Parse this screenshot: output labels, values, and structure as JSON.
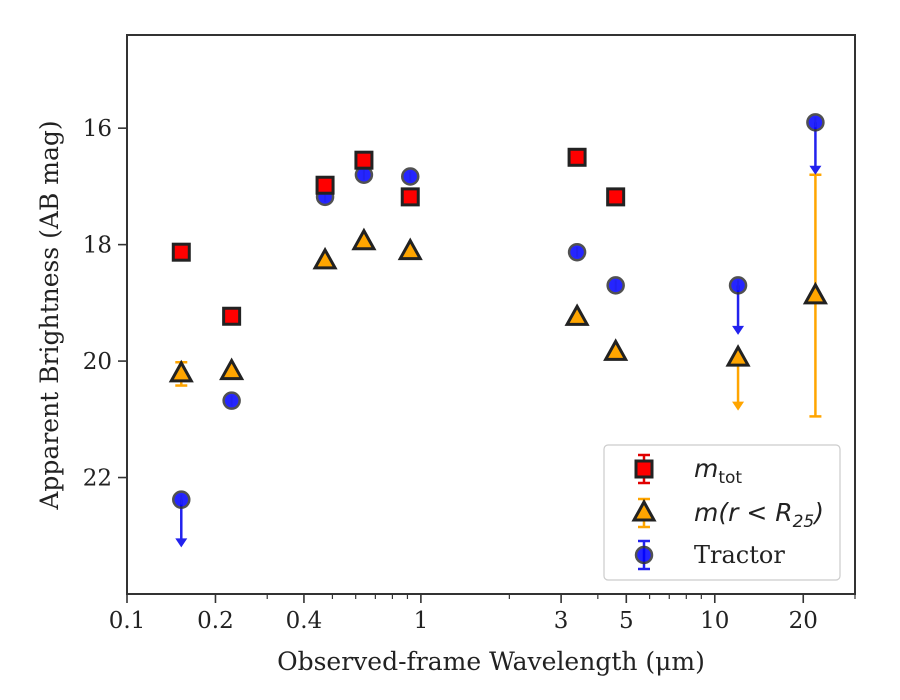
{
  "chart_data": {
    "type": "scatter",
    "xlabel": "Observed-frame Wavelength (μm)",
    "ylabel": "Apparent Brightness (AB mag)",
    "xscale": "log",
    "xlim": [
      0.1,
      30
    ],
    "ylim": [
      24.0,
      14.4
    ],
    "y_inverted": true,
    "x_ticks": [
      {
        "value": 0.1,
        "label": "0.1"
      },
      {
        "value": 0.2,
        "label": "0.2"
      },
      {
        "value": 0.4,
        "label": "0.4"
      },
      {
        "value": 1,
        "label": "1"
      },
      {
        "value": 3,
        "label": "3"
      },
      {
        "value": 5,
        "label": "5"
      },
      {
        "value": 10,
        "label": "10"
      },
      {
        "value": 20,
        "label": "20"
      }
    ],
    "y_ticks": [
      {
        "value": 16,
        "label": "16"
      },
      {
        "value": 18,
        "label": "18"
      },
      {
        "value": 20,
        "label": "20"
      },
      {
        "value": 22,
        "label": "22"
      }
    ],
    "grid": false,
    "legend_position": "lower-right",
    "series": [
      {
        "name": "m_tot",
        "legend_main": "m",
        "legend_sub": "tot",
        "marker": "square",
        "color": "#ff0000",
        "edge_color": "#222222",
        "errbar_color": "#e00000",
        "points": [
          {
            "x": 0.153,
            "y": 18.13
          },
          {
            "x": 0.227,
            "y": 19.23
          },
          {
            "x": 0.472,
            "y": 16.98
          },
          {
            "x": 0.64,
            "y": 16.55
          },
          {
            "x": 0.92,
            "y": 17.18
          },
          {
            "x": 3.4,
            "y": 16.5
          },
          {
            "x": 4.6,
            "y": 17.18
          }
        ]
      },
      {
        "name": "m(r<R25)",
        "legend_main": "m(r < R",
        "legend_sub": "25",
        "legend_tail": ")",
        "marker": "triangle",
        "color": "#ffa500",
        "edge_color": "#222222",
        "errbar_color": "#ffa500",
        "points": [
          {
            "x": 0.153,
            "y": 20.22,
            "yerr": [
              0.2,
              0.2
            ]
          },
          {
            "x": 0.227,
            "y": 20.18
          },
          {
            "x": 0.472,
            "y": 18.28
          },
          {
            "x": 0.64,
            "y": 17.95
          },
          {
            "x": 0.92,
            "y": 18.12
          },
          {
            "x": 3.4,
            "y": 19.25
          },
          {
            "x": 4.6,
            "y": 19.85
          },
          {
            "x": 12.0,
            "y": 19.95,
            "upper_limit_to": 20.85
          },
          {
            "x": 22.0,
            "y": 18.88,
            "yerr_range": [
              16.8,
              20.95
            ]
          }
        ]
      },
      {
        "name": "Tractor",
        "marker": "circle",
        "color": "#0000ff",
        "edge_color": "#333333",
        "errbar_color": "#2222ee",
        "points": [
          {
            "x": 0.153,
            "y": 22.38,
            "upper_limit_to": 23.2
          },
          {
            "x": 0.227,
            "y": 20.68
          },
          {
            "x": 0.472,
            "y": 17.18
          },
          {
            "x": 0.64,
            "y": 16.8
          },
          {
            "x": 0.92,
            "y": 16.83
          },
          {
            "x": 3.4,
            "y": 18.13
          },
          {
            "x": 4.6,
            "y": 18.7
          },
          {
            "x": 12.0,
            "y": 18.7,
            "upper_limit_to": 19.55
          },
          {
            "x": 22.0,
            "y": 15.9,
            "upper_limit_to": 16.8
          }
        ]
      }
    ]
  }
}
